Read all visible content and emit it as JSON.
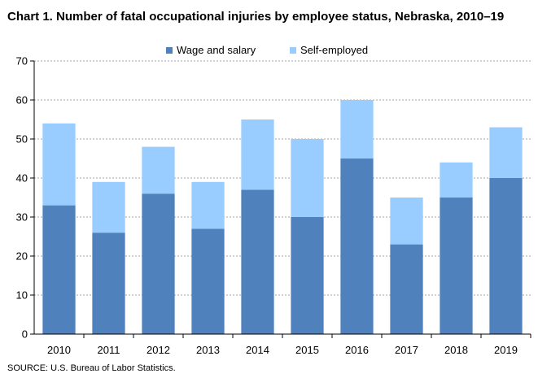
{
  "title": "Chart 1. Number of fatal occupational injuries by employee status, Nebraska, 2010–19",
  "source": "SOURCE: U.S. Bureau of Labor Statistics.",
  "colors": {
    "wage": "#4f81bd",
    "self": "#99ccff",
    "grid": "#a6a6a6",
    "axis": "#000000"
  },
  "chart_data": {
    "type": "bar",
    "stacked": true,
    "categories": [
      "2010",
      "2011",
      "2012",
      "2013",
      "2014",
      "2015",
      "2016",
      "2017",
      "2018",
      "2019"
    ],
    "series": [
      {
        "name": "Wage and salary",
        "values": [
          33,
          26,
          36,
          27,
          37,
          30,
          45,
          23,
          35,
          40
        ]
      },
      {
        "name": "Self-employed",
        "values": [
          21,
          13,
          12,
          12,
          18,
          20,
          15,
          12,
          9,
          13
        ]
      }
    ],
    "yticks": [
      "0",
      "10",
      "20",
      "30",
      "40",
      "50",
      "60",
      "70"
    ],
    "ylim": [
      0,
      70
    ],
    "grid": true,
    "legend_position": "top-center",
    "title": "Chart 1. Number of fatal occupational injuries by employee status, Nebraska, 2010–19"
  }
}
